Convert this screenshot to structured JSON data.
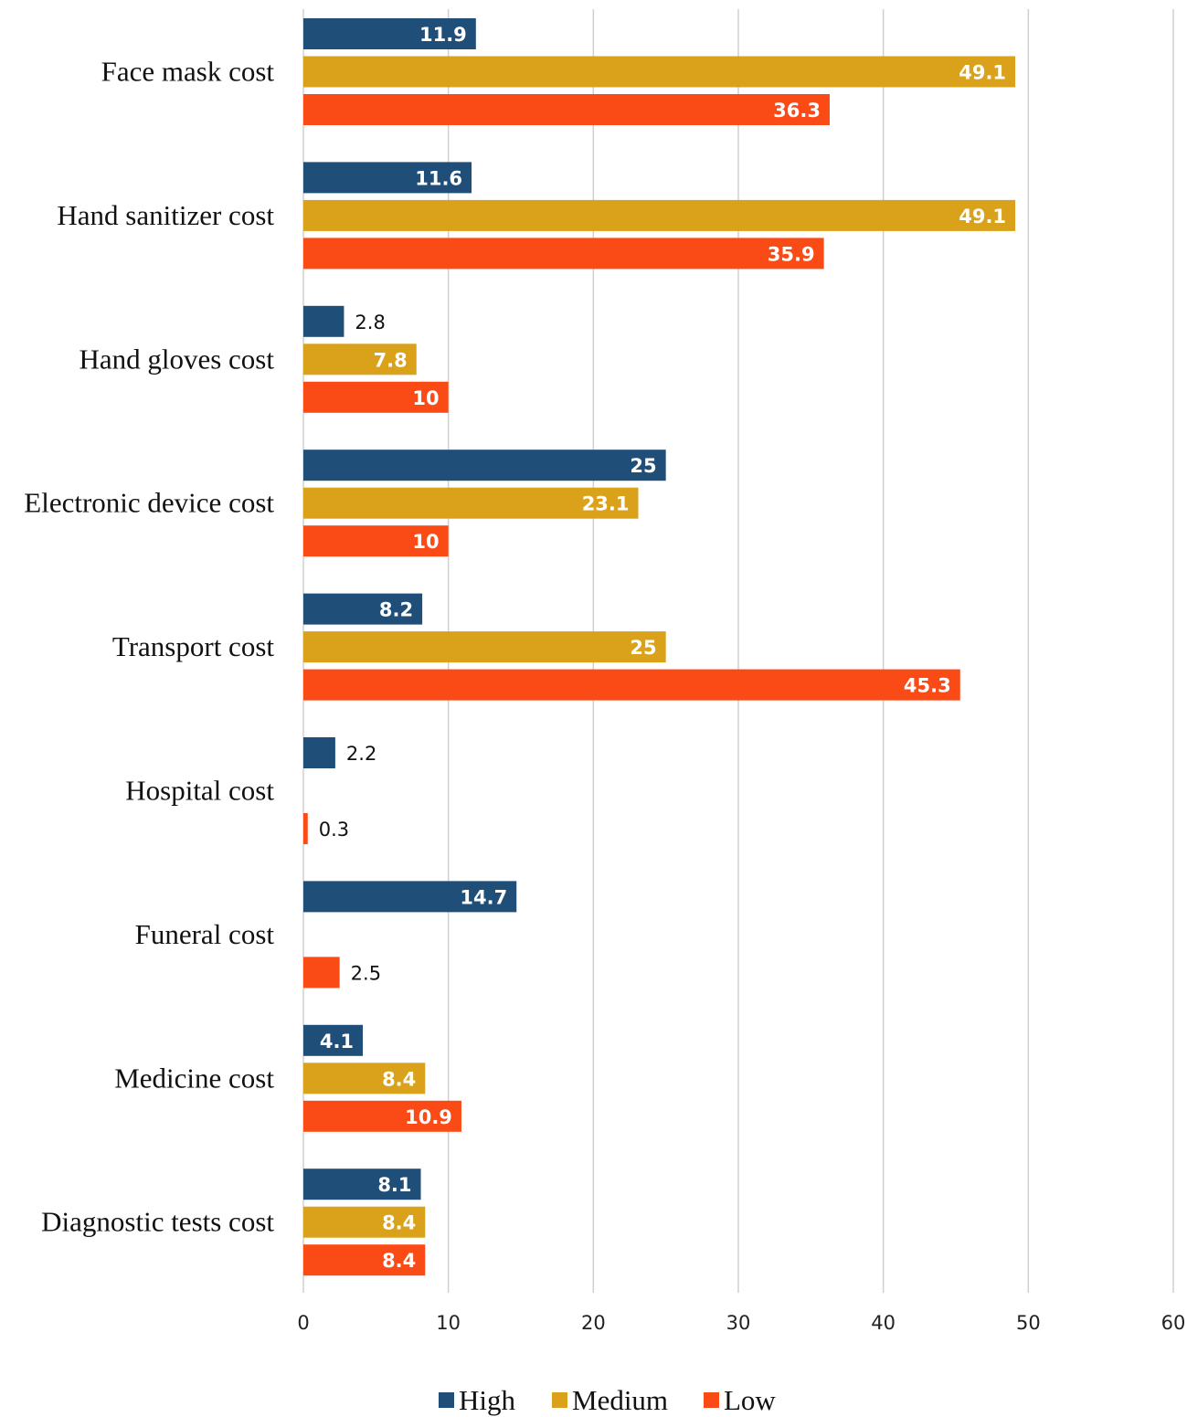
{
  "chart_data": {
    "type": "bar",
    "orientation": "horizontal",
    "categories": [
      "Face mask cost",
      "Hand sanitizer cost",
      "Hand gloves cost",
      "Electronic device cost",
      "Transport cost",
      "Hospital cost",
      "Funeral cost",
      "Medicine cost",
      "Diagnostic tests cost"
    ],
    "series": [
      {
        "name": "High",
        "color": "#1f4e79",
        "values": [
          11.9,
          11.6,
          2.8,
          25,
          8.2,
          2.2,
          14.7,
          4.1,
          8.1
        ]
      },
      {
        "name": "Medium",
        "color": "#daa11a",
        "values": [
          49.1,
          49.1,
          7.8,
          23.1,
          25,
          null,
          null,
          8.4,
          8.4
        ]
      },
      {
        "name": "Low",
        "color": "#fa4a16",
        "values": [
          36.3,
          35.9,
          10,
          10,
          45.3,
          0.3,
          2.5,
          10.9,
          8.4
        ]
      }
    ],
    "xlim": [
      0,
      60
    ],
    "xticks": [
      0,
      10,
      20,
      30,
      40,
      50,
      60
    ],
    "grid": true,
    "legend_position": "bottom-center",
    "data_labels": true
  }
}
